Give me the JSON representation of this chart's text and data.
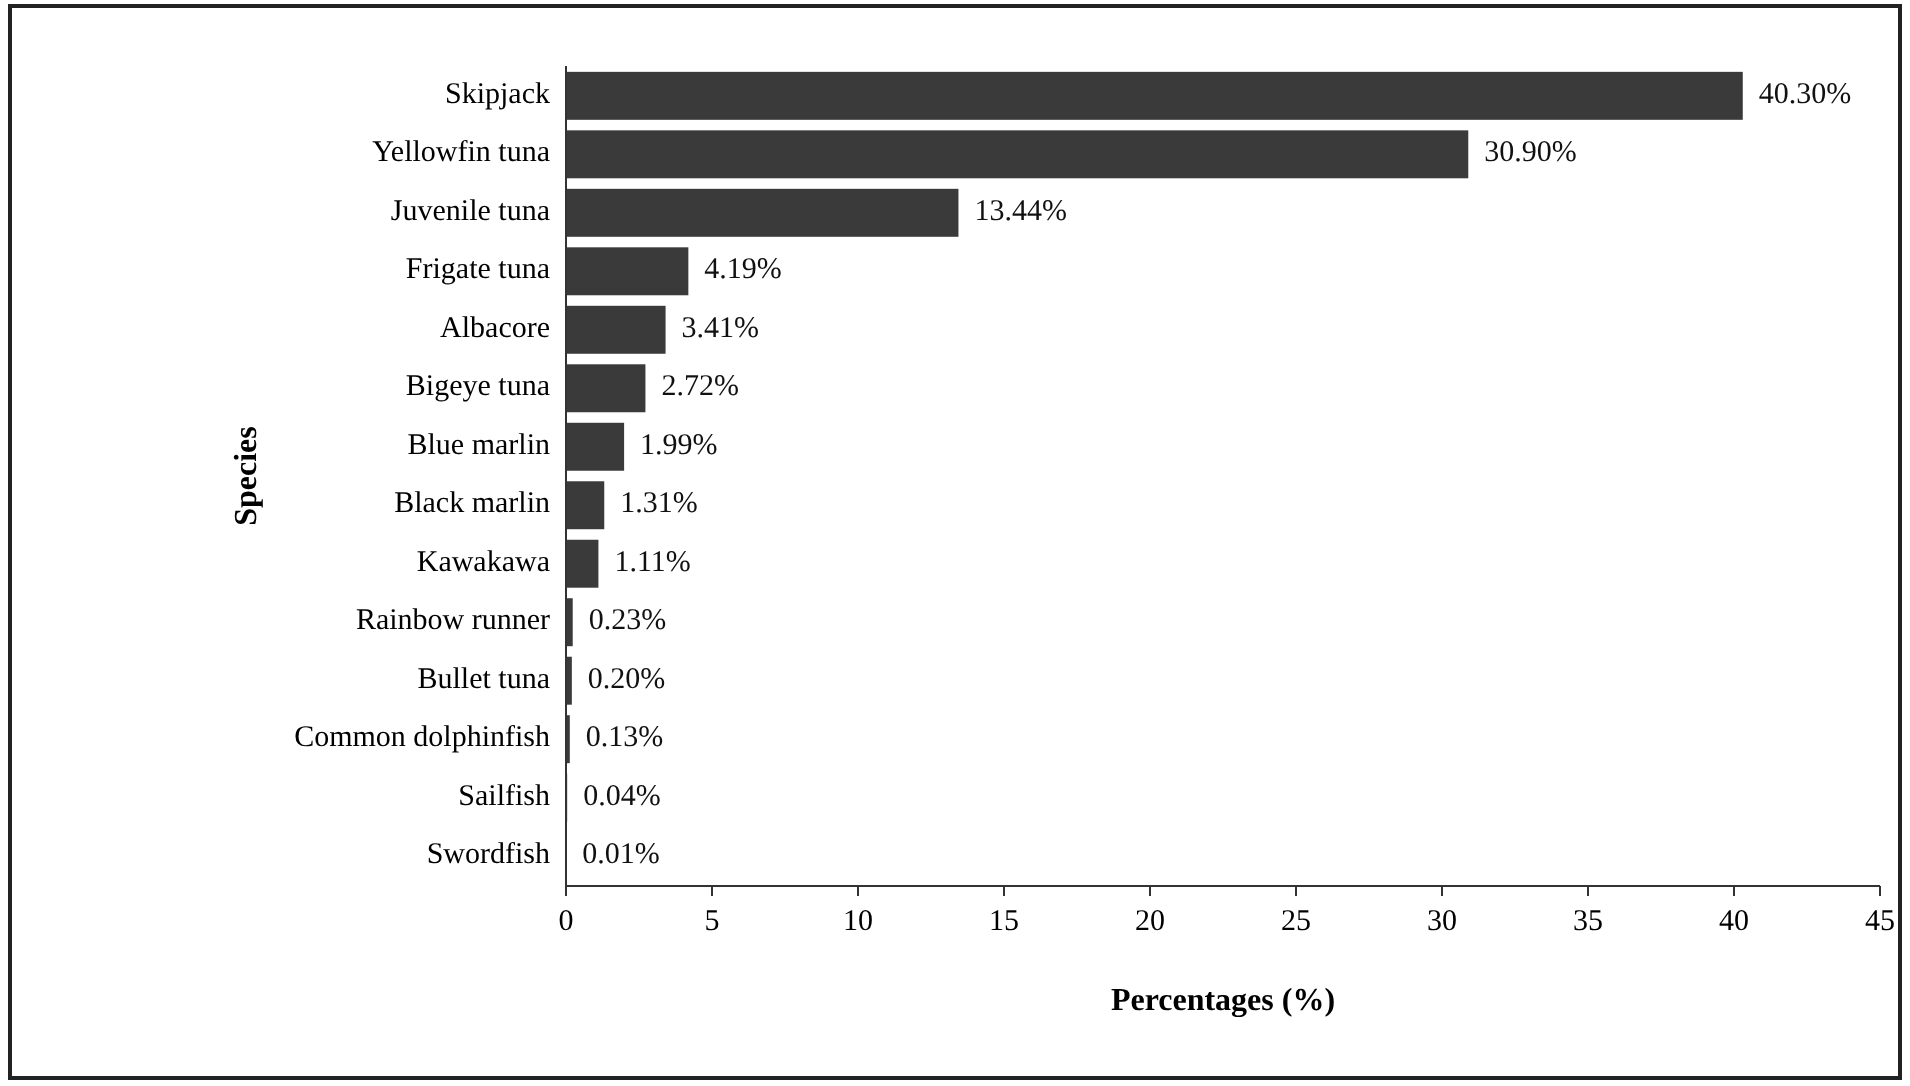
{
  "chart_data": {
    "type": "bar",
    "orientation": "horizontal",
    "xlabel": "Percentages (%)",
    "ylabel": "Species",
    "categories": [
      "Skipjack",
      "Yellowfin tuna",
      "Juvenile tuna",
      "Frigate tuna",
      "Albacore",
      "Bigeye tuna",
      "Blue marlin",
      "Black marlin",
      "Kawakawa",
      "Rainbow runner",
      "Bullet tuna",
      "Common dolphinfish",
      "Sailfish",
      "Swordfish"
    ],
    "values": [
      40.3,
      30.9,
      13.44,
      4.19,
      3.41,
      2.72,
      1.99,
      1.31,
      1.11,
      0.23,
      0.2,
      0.13,
      0.04,
      0.01
    ],
    "value_labels": [
      "40.30%",
      "30.90%",
      "13.44%",
      "4.19%",
      "3.41%",
      "2.72%",
      "1.99%",
      "1.31%",
      "1.11%",
      "0.23%",
      "0.20%",
      "0.13%",
      "0.04%",
      "0.01%"
    ],
    "color": "#3a3a3a",
    "xlim": [
      0,
      45
    ],
    "xticks": [
      0,
      5,
      10,
      15,
      20,
      25,
      30,
      35,
      40,
      45
    ],
    "grid": false
  }
}
